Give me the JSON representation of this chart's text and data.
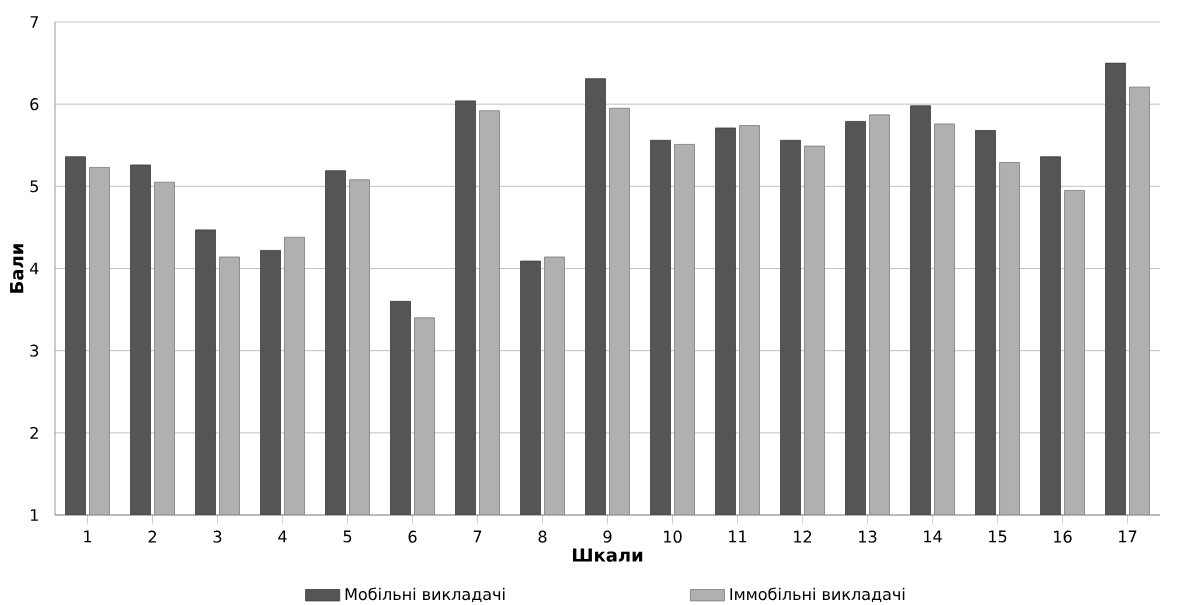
{
  "chart_data": {
    "type": "bar",
    "xlabel": "Шкали",
    "ylabel": "Бали",
    "categories": [
      "1",
      "2",
      "3",
      "4",
      "5",
      "6",
      "7",
      "8",
      "9",
      "10",
      "11",
      "12",
      "13",
      "14",
      "15",
      "16",
      "17"
    ],
    "series": [
      {
        "name": "Мобільні викладачі",
        "color": "#555555",
        "values": [
          5.36,
          5.26,
          4.47,
          4.22,
          5.19,
          3.6,
          6.04,
          4.09,
          6.31,
          5.56,
          5.71,
          5.56,
          5.79,
          5.98,
          5.68,
          5.36,
          6.5
        ]
      },
      {
        "name": "Іммобільні викладачі",
        "color": "#b0b0b0",
        "values": [
          5.23,
          5.05,
          4.14,
          4.38,
          5.08,
          3.4,
          5.92,
          4.14,
          5.95,
          5.51,
          5.74,
          5.49,
          5.87,
          5.76,
          5.29,
          4.95,
          6.21
        ]
      }
    ],
    "ylim": [
      1,
      7
    ],
    "yticks": [
      1,
      2,
      3,
      4,
      5,
      6,
      7
    ],
    "grid": "y",
    "legend": "bottom"
  }
}
